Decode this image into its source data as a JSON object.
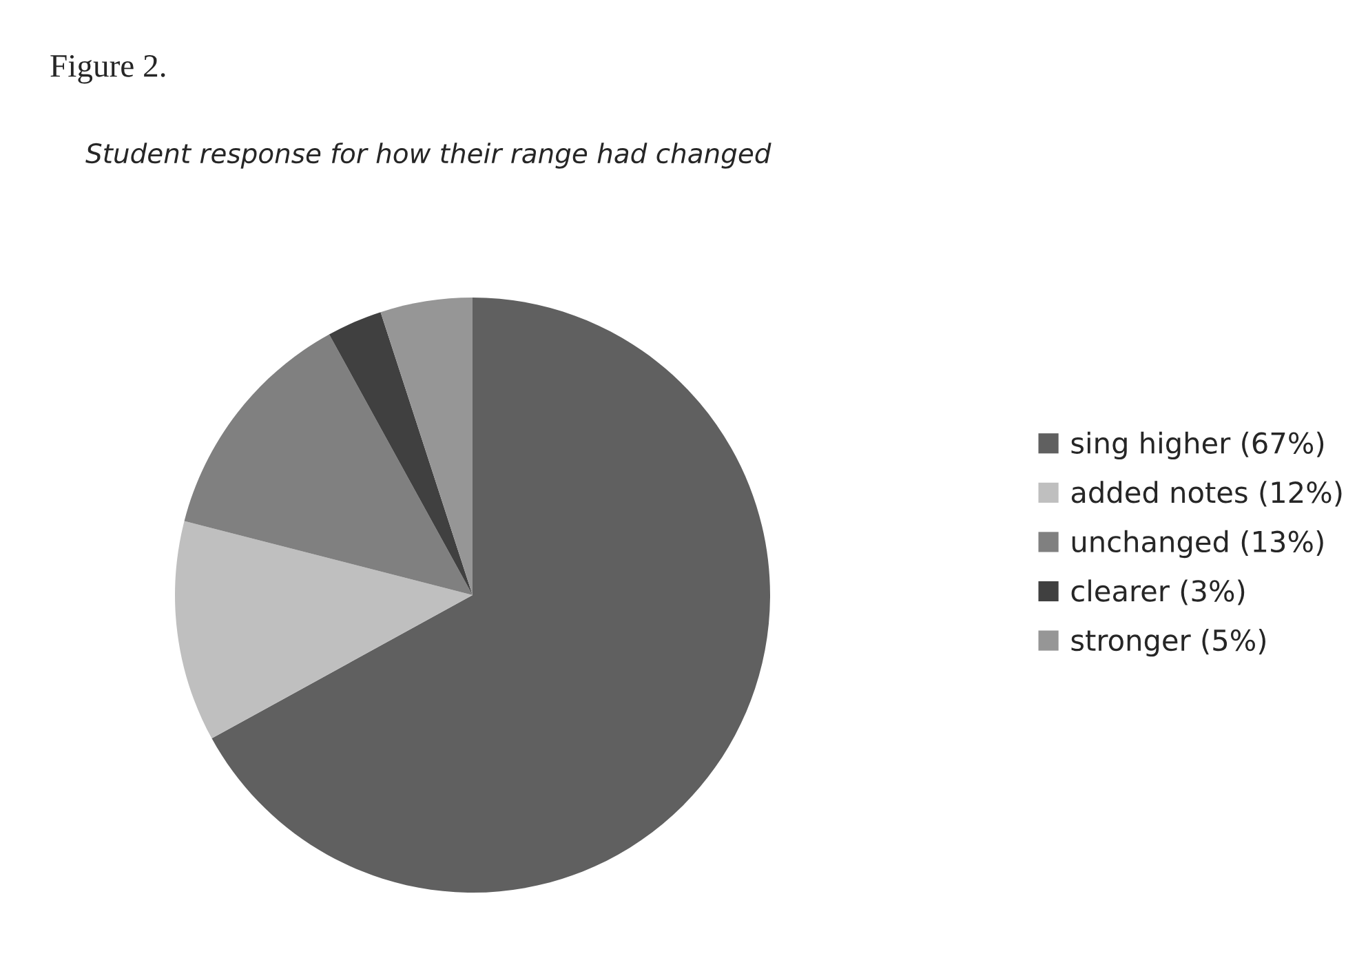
{
  "chart_data": {
    "type": "pie",
    "title": "Figure 2.",
    "subtitle": "Student response for how their range had changed",
    "categories": [
      "sing higher (67%)",
      "added notes (12%)",
      "unchanged (13%)",
      "clearer (3%)",
      "stronger (5%)"
    ],
    "values": [
      67,
      12,
      13,
      3,
      5
    ],
    "colors": [
      "#606060",
      "#bfbfbf",
      "#808080",
      "#404040",
      "#969696"
    ],
    "legend": "right"
  }
}
